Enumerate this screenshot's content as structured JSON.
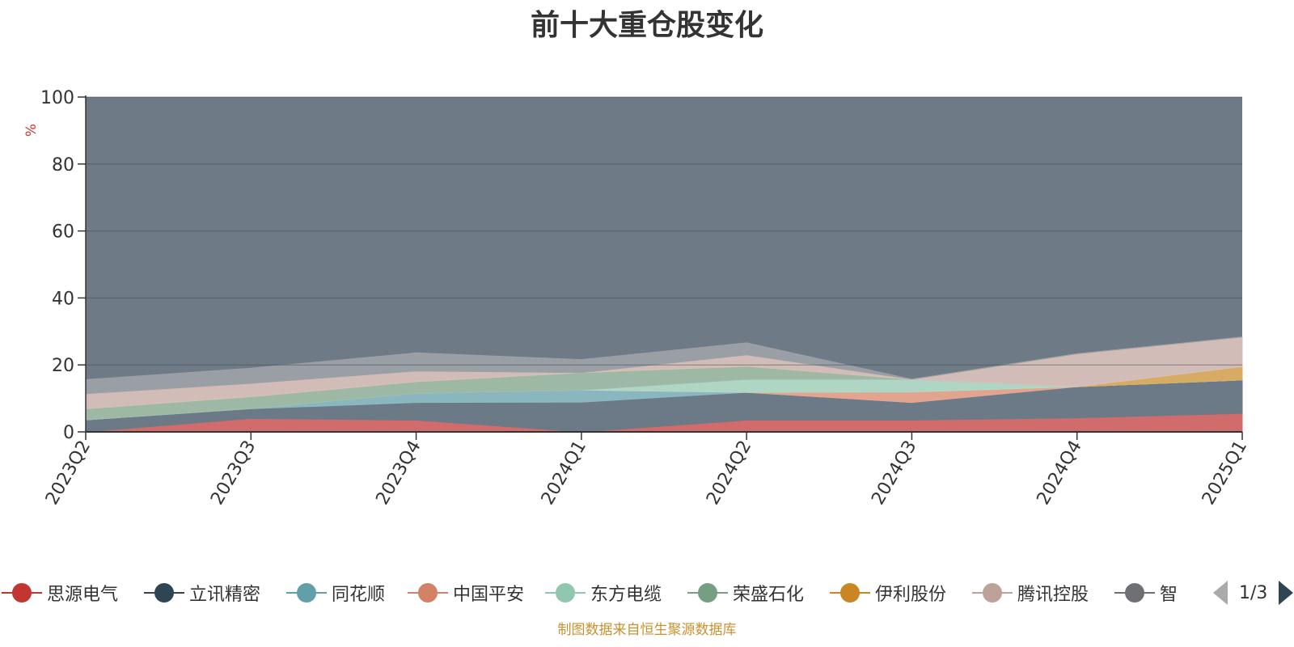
{
  "chart_data": {
    "type": "area",
    "title": "前十大重仓股变化",
    "ylabel": "%",
    "ylim": [
      0,
      100
    ],
    "yticks": [
      0,
      20,
      40,
      60,
      80,
      100
    ],
    "stacked": true,
    "categories": [
      "2023Q2",
      "2023Q3",
      "2023Q4",
      "2024Q1",
      "2024Q2",
      "2024Q3",
      "2024Q4",
      "2025Q1"
    ],
    "series": [
      {
        "name": "思源电气",
        "color": "#d66b6b",
        "values": [
          0,
          4,
          3.5,
          0,
          3.5,
          3.5,
          4.2,
          5.5
        ]
      },
      {
        "name": "立讯精密",
        "color": "#6b7a87",
        "values": [
          3.6,
          2.9,
          5.3,
          8.9,
          8.3,
          5.3,
          9.3,
          10
        ]
      },
      {
        "name": "同花顺",
        "color": "#8bbac2",
        "values": [
          0,
          0.1,
          2.8,
          3.6,
          0,
          0,
          0,
          0
        ]
      },
      {
        "name": "中国平安",
        "color": "#e8a58f",
        "values": [
          0,
          0,
          0,
          0,
          0,
          3.1,
          0,
          0
        ]
      },
      {
        "name": "东方电缆",
        "color": "#b2dac8",
        "values": [
          0,
          0,
          0,
          0,
          3.9,
          3.8,
          0,
          0
        ]
      },
      {
        "name": "荣盛石化",
        "color": "#9fbca6",
        "values": [
          3.3,
          3.5,
          3.4,
          5.2,
          3.9,
          0,
          0,
          0
        ]
      },
      {
        "name": "伊利股份",
        "color": "#dcae62",
        "values": [
          0,
          0,
          0,
          0,
          0,
          0,
          0,
          4
        ]
      },
      {
        "name": "腾讯控股",
        "color": "#d7c0bb",
        "values": [
          4.5,
          4,
          3.2,
          0,
          3.4,
          0,
          9.8,
          8.8
        ]
      },
      {
        "name": "智飞生物",
        "color": "#9ca0a6",
        "values": [
          4.2,
          4.5,
          5.4,
          3.9,
          3.6,
          0,
          0,
          0
        ]
      }
    ],
    "legend_pager": "1/3"
  },
  "source_note": "制图数据来自恒生聚源数据库"
}
